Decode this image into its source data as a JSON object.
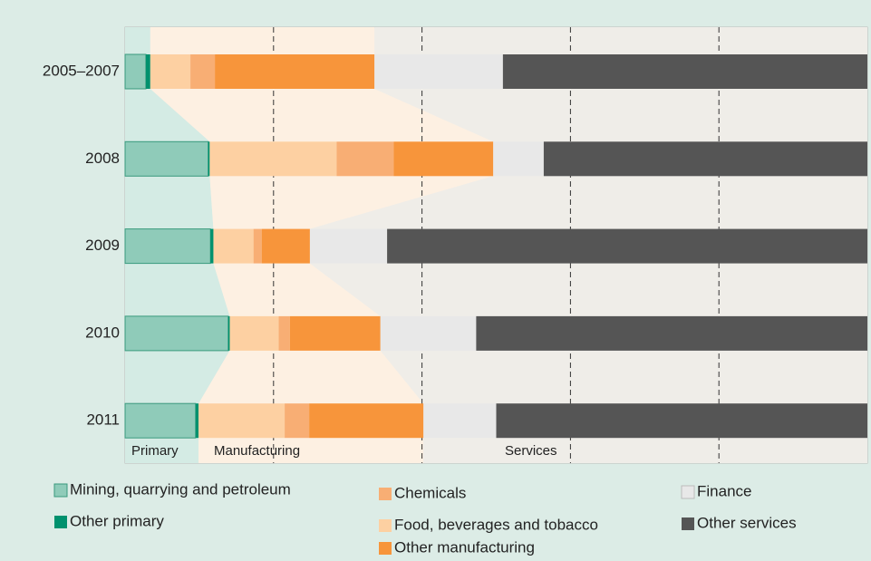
{
  "chart_data": {
    "type": "stacked_barh",
    "categories": [
      "2005–2007",
      "2008",
      "2009",
      "2010",
      "2011"
    ],
    "series": [
      {
        "name": "Mining, quarrying and petroleum",
        "color": "#8fcbb9",
        "values": [
          2.8,
          11.2,
          11.5,
          13.9,
          9.5
        ]
      },
      {
        "name": "Other primary",
        "color": "#00916e",
        "values": [
          0.6,
          0.2,
          0.4,
          0.2,
          0.4
        ]
      },
      {
        "name": "Food, beverages and tobacco",
        "color": "#fdd0a2",
        "values": [
          5.4,
          17.1,
          5.4,
          6.6,
          11.6
        ]
      },
      {
        "name": "Chemicals",
        "color": "#f8ae74",
        "values": [
          3.3,
          7.7,
          1.1,
          1.5,
          3.3
        ]
      },
      {
        "name": "Other manufacturing",
        "color": "#f7953b",
        "values": [
          21.5,
          13.4,
          6.5,
          12.2,
          15.4
        ]
      },
      {
        "name": "Finance",
        "color": "#e8e8e8",
        "values": [
          17.3,
          6.8,
          10.4,
          12.9,
          9.8
        ]
      },
      {
        "name": "Other services",
        "color": "#555555",
        "values": [
          49.1,
          43.6,
          64.7,
          52.7,
          50.0
        ]
      }
    ],
    "sector_labels": [
      "Primary",
      "Manufacturing",
      "Services"
    ],
    "xlim": [
      0,
      100
    ],
    "xticks": [
      20,
      40,
      60,
      80
    ],
    "grid": true
  }
}
